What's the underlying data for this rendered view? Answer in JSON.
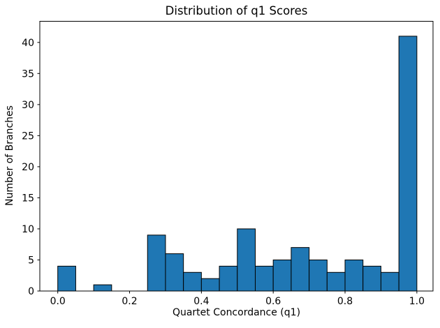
{
  "chart_data": {
    "type": "bar",
    "subtype": "histogram",
    "title": "Distribution of q1 Scores",
    "xlabel": "Quartet Concordance (q1)",
    "ylabel": "Number of Branches",
    "bin_start": 0.0,
    "bin_width": 0.05,
    "bin_edges": [
      0.0,
      0.05,
      0.1,
      0.15,
      0.2,
      0.25,
      0.3,
      0.35,
      0.4,
      0.45,
      0.5,
      0.55,
      0.6,
      0.65,
      0.7,
      0.75,
      0.8,
      0.85,
      0.9,
      0.95,
      1.0
    ],
    "values": [
      4,
      0,
      1,
      0,
      0,
      9,
      6,
      3,
      2,
      4,
      10,
      4,
      5,
      7,
      5,
      3,
      5,
      4,
      3,
      41
    ],
    "total_branches": 116,
    "xlim": [
      -0.05,
      1.045
    ],
    "ylim": [
      0,
      43.4
    ],
    "xticks": [
      {
        "v": 0.0,
        "label": "0.0"
      },
      {
        "v": 0.2,
        "label": "0.2"
      },
      {
        "v": 0.4,
        "label": "0.4"
      },
      {
        "v": 0.6,
        "label": "0.6"
      },
      {
        "v": 0.8,
        "label": "0.8"
      },
      {
        "v": 1.0,
        "label": "1.0"
      }
    ],
    "yticks": [
      {
        "v": 0,
        "label": "0"
      },
      {
        "v": 5,
        "label": "5"
      },
      {
        "v": 10,
        "label": "10"
      },
      {
        "v": 15,
        "label": "15"
      },
      {
        "v": 20,
        "label": "20"
      },
      {
        "v": 25,
        "label": "25"
      },
      {
        "v": 30,
        "label": "30"
      },
      {
        "v": 35,
        "label": "35"
      },
      {
        "v": 40,
        "label": "40"
      }
    ],
    "grid": false,
    "legend": null,
    "colors": {
      "bar_fill": "#1f77b4",
      "bar_edge": "#000000",
      "spine": "#000000",
      "text": "#000000",
      "background": "#ffffff"
    }
  }
}
